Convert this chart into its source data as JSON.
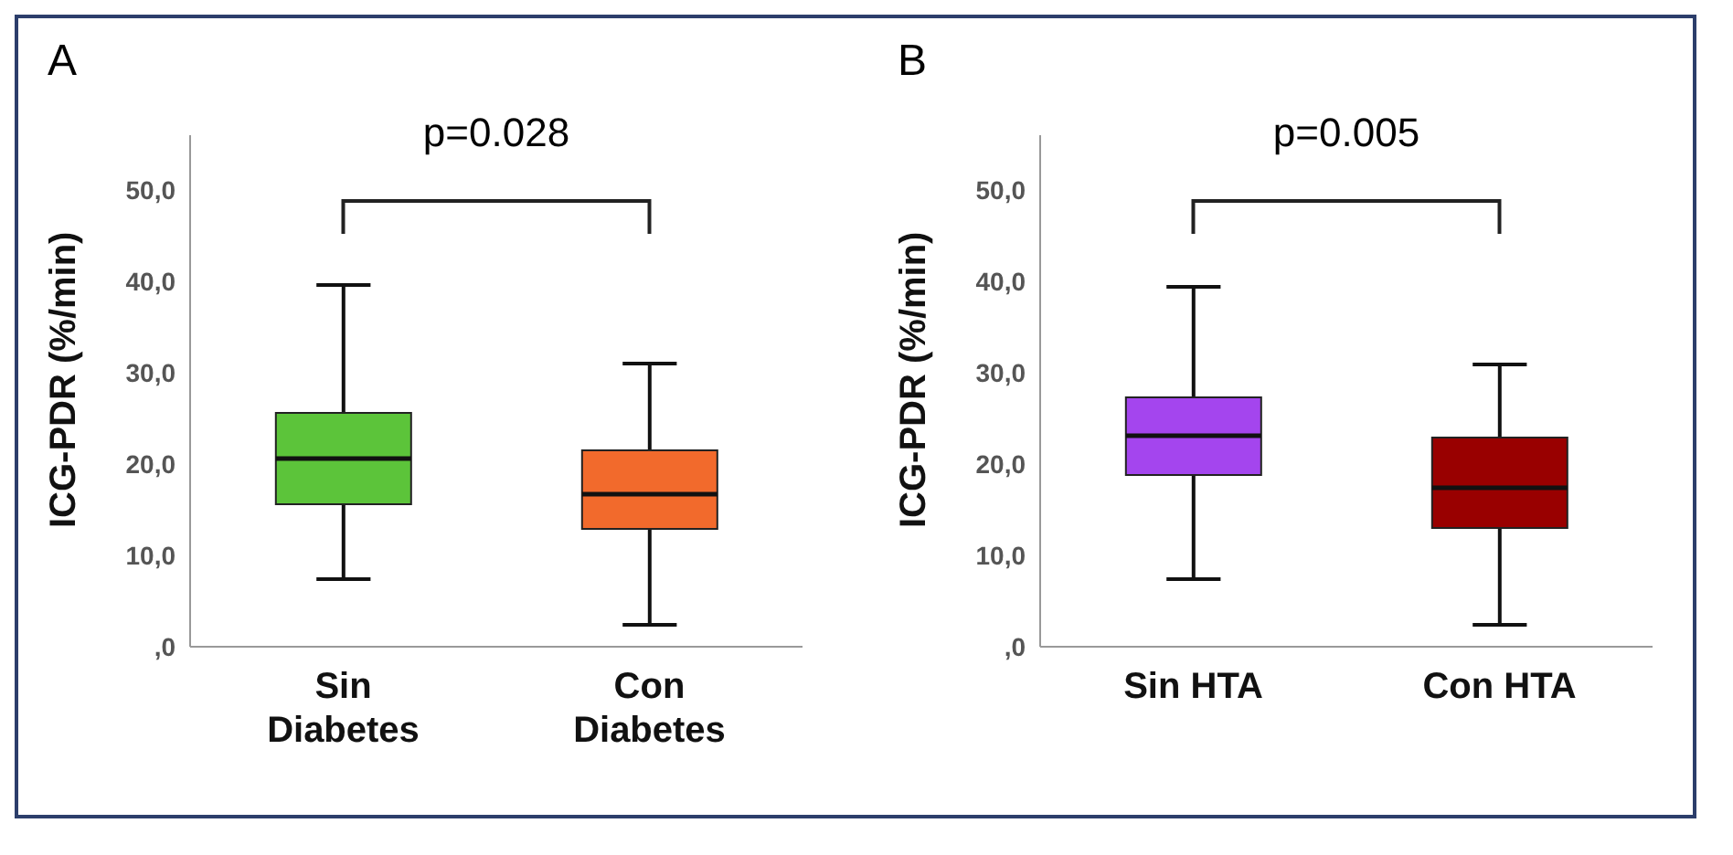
{
  "chart_data": [
    {
      "type": "box",
      "title": "A",
      "ylabel": "ICG-PDR (%/min)",
      "categories": [
        "Sin Diabetes",
        "Con Diabetes"
      ],
      "colors": [
        "#5cc43a",
        "#f26a2c"
      ],
      "boxes": [
        {
          "low": 7.4,
          "q1": 15.6,
          "median": 20.6,
          "q3": 25.6,
          "high": 39.6
        },
        {
          "low": 2.4,
          "q1": 12.9,
          "median": 16.7,
          "q3": 21.5,
          "high": 31.0
        }
      ],
      "ylim": [
        0,
        56
      ],
      "yticks": [
        {
          "value": 0,
          "label": ",0"
        },
        {
          "value": 10,
          "label": "10,0"
        },
        {
          "value": 20,
          "label": "20,0"
        },
        {
          "value": 30,
          "label": "30,0"
        },
        {
          "value": 40,
          "label": "40,0"
        },
        {
          "value": 50,
          "label": "50,0"
        }
      ],
      "annotations": [
        "p=0.028"
      ]
    },
    {
      "type": "box",
      "title": "B",
      "ylabel": "ICG-PDR (%/min)",
      "categories": [
        "Sin HTA",
        "Con HTA"
      ],
      "colors": [
        "#a445ee",
        "#990000"
      ],
      "boxes": [
        {
          "low": 7.4,
          "q1": 18.8,
          "median": 23.1,
          "q3": 27.3,
          "high": 39.4
        },
        {
          "low": 2.4,
          "q1": 13.0,
          "median": 17.4,
          "q3": 22.9,
          "high": 30.9
        }
      ],
      "ylim": [
        0,
        56
      ],
      "yticks": [
        {
          "value": 0,
          "label": ",0"
        },
        {
          "value": 10,
          "label": "10,0"
        },
        {
          "value": 20,
          "label": "20,0"
        },
        {
          "value": 30,
          "label": "30,0"
        },
        {
          "value": 40,
          "label": "40,0"
        },
        {
          "value": 50,
          "label": "50,0"
        }
      ],
      "annotations": [
        "p=0.005"
      ]
    }
  ]
}
